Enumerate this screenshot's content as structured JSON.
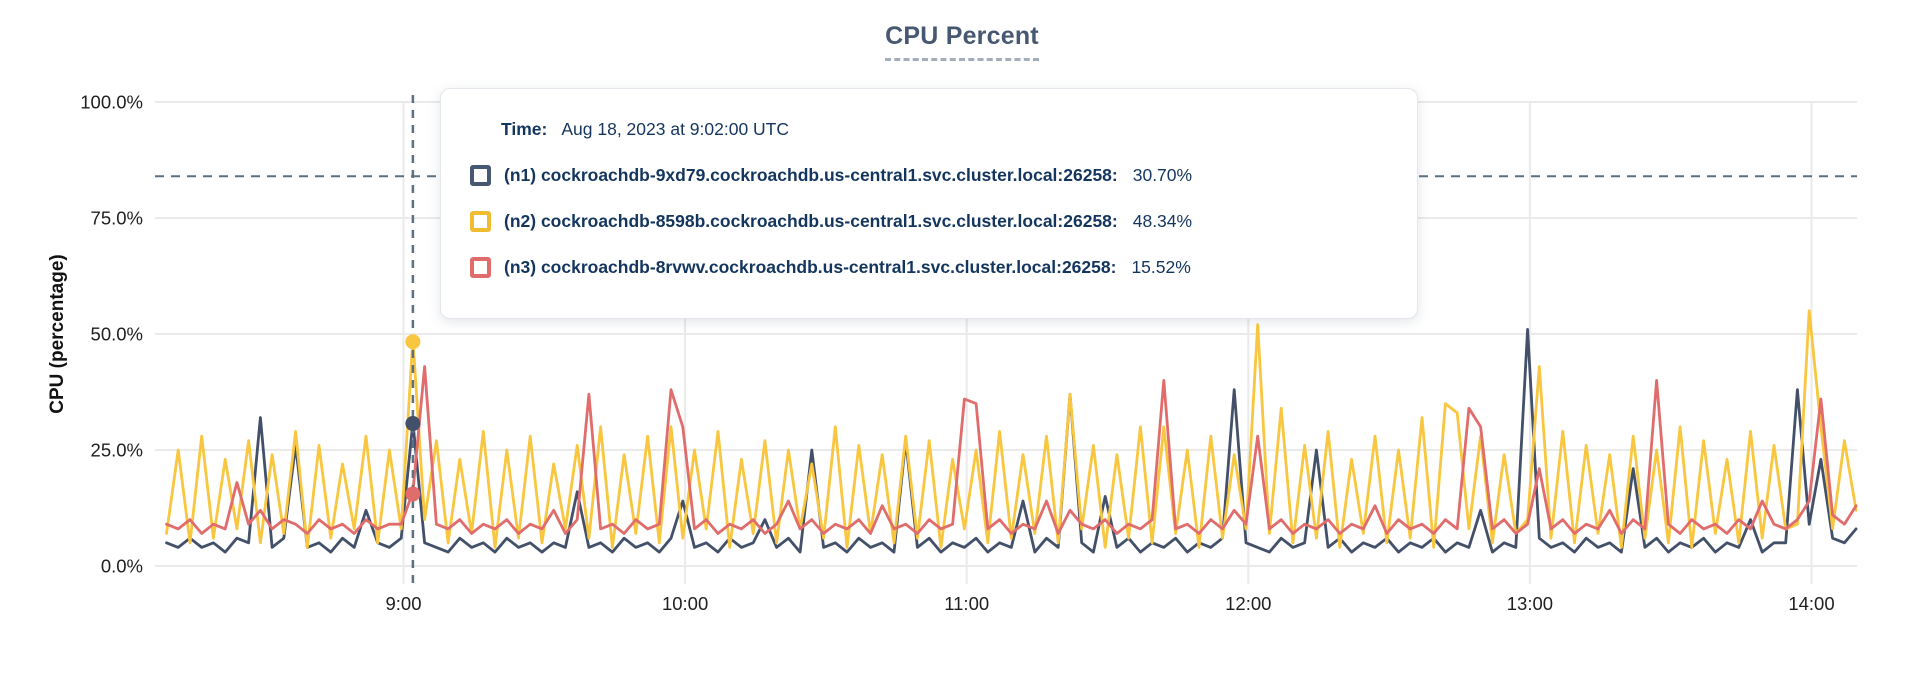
{
  "title": "CPU Percent",
  "y_axis_label": "CPU (percentage)",
  "tooltip": {
    "time_label": "Time:",
    "time_value": "Aug 18, 2023 at 9:02:00 UTC",
    "rows": [
      {
        "id": "n1",
        "label": "(n1) cockroachdb-9xd79.cockroachdb.us-central1.svc.cluster.local:26258:",
        "value": "30.70%",
        "color": "#475872"
      },
      {
        "id": "n2",
        "label": "(n2) cockroachdb-8598b.cockroachdb.us-central1.svc.cluster.local:26258:",
        "value": "48.34%",
        "color": "#f0bd32"
      },
      {
        "id": "n3",
        "label": "(n3) cockroachdb-8rvwv.cockroachdb.us-central1.svc.cluster.local:26258:",
        "value": "15.52%",
        "color": "#e06c6c"
      }
    ]
  },
  "hover": {
    "minute": 542,
    "values": [
      30.7,
      48.34,
      15.52
    ]
  },
  "colors": {
    "grid": "#eaeaea",
    "axis_text": "#1f1f1f",
    "dashed_guides": "#5c7082",
    "tooltip_text": "#14355e",
    "title": "#475872"
  },
  "chart_data": {
    "type": "line",
    "title": "CPU Percent",
    "xlabel": "",
    "ylabel": "CPU (percentage)",
    "ylim": [
      0,
      100
    ],
    "grid": true,
    "threshold_pct": 84,
    "x_start_min": 489.5,
    "x_step_min": 2.5,
    "x_ticks": [
      {
        "minute": 540,
        "label": "9:00"
      },
      {
        "minute": 600,
        "label": "10:00"
      },
      {
        "minute": 660,
        "label": "11:00"
      },
      {
        "minute": 720,
        "label": "12:00"
      },
      {
        "minute": 780,
        "label": "13:00"
      },
      {
        "minute": 840,
        "label": "14:00"
      }
    ],
    "y_ticks": [
      {
        "value": 0,
        "label": "0.0%"
      },
      {
        "value": 25,
        "label": "25.0%"
      },
      {
        "value": 50,
        "label": "50.0%"
      },
      {
        "value": 75,
        "label": "75.0%"
      },
      {
        "value": 100,
        "label": "100.0%"
      }
    ],
    "series": [
      {
        "id": "n1",
        "name": "(n1) cockroachdb-9xd79.cockroachdb.us-central1.svc.cluster.local:26258",
        "color": "#43506a",
        "hover_value": 30.7,
        "values": [
          5,
          4,
          6,
          4,
          5,
          3,
          6,
          5,
          32,
          4,
          6,
          26,
          4,
          5,
          3,
          6,
          4,
          12,
          5,
          4,
          6,
          31,
          5,
          4,
          3,
          6,
          4,
          5,
          3,
          6,
          4,
          5,
          3,
          5,
          4,
          16,
          4,
          5,
          3,
          6,
          4,
          5,
          3,
          6,
          14,
          4,
          5,
          3,
          6,
          4,
          5,
          10,
          4,
          6,
          3,
          25,
          4,
          5,
          3,
          6,
          4,
          5,
          3,
          27,
          4,
          6,
          3,
          5,
          4,
          6,
          3,
          5,
          4,
          14,
          3,
          6,
          4,
          37,
          5,
          3,
          15,
          4,
          6,
          3,
          5,
          4,
          6,
          3,
          5,
          4,
          6,
          38,
          5,
          4,
          3,
          6,
          4,
          5,
          25,
          4,
          6,
          3,
          5,
          4,
          6,
          3,
          5,
          4,
          6,
          3,
          5,
          4,
          12,
          3,
          5,
          4,
          51,
          6,
          4,
          5,
          3,
          6,
          4,
          5,
          3,
          21,
          4,
          6,
          3,
          5,
          4,
          6,
          3,
          5,
          4,
          10,
          3,
          5,
          5,
          38,
          9,
          23,
          6,
          5,
          8
        ]
      },
      {
        "id": "n2",
        "name": "(n2) cockroachdb-8598b.cockroachdb.us-central1.svc.cluster.local:26258",
        "color": "#f8c63f",
        "hover_value": 48.34,
        "values": [
          7,
          25,
          5,
          28,
          6,
          23,
          8,
          27,
          5,
          24,
          7,
          29,
          4,
          26,
          6,
          22,
          8,
          28,
          5,
          25,
          8,
          49,
          10,
          27,
          5,
          23,
          7,
          29,
          4,
          25,
          6,
          28,
          5,
          22,
          8,
          26,
          6,
          30,
          4,
          24,
          7,
          28,
          5,
          30,
          6,
          25,
          8,
          29,
          4,
          23,
          7,
          27,
          5,
          25,
          8,
          22,
          6,
          30,
          4,
          26,
          7,
          24,
          5,
          28,
          6,
          27,
          4,
          23,
          8,
          25,
          5,
          29,
          6,
          24,
          7,
          28,
          5,
          37,
          8,
          26,
          4,
          24,
          6,
          30,
          5,
          30,
          7,
          25,
          4,
          28,
          6,
          24,
          8,
          52,
          7,
          34,
          5,
          26,
          6,
          29,
          4,
          23,
          7,
          28,
          5,
          25,
          6,
          32,
          4,
          35,
          33,
          8,
          28,
          5,
          24,
          7,
          10,
          43,
          6,
          29,
          5,
          26,
          7,
          24,
          4,
          28,
          6,
          25,
          5,
          30,
          4,
          27,
          7,
          23,
          5,
          29,
          6,
          26,
          8,
          9,
          55,
          30,
          8,
          27,
          12
        ]
      },
      {
        "id": "n3",
        "name": "(n3) cockroachdb-8rvwv.cockroachdb.us-central1.svc.cluster.local:26258",
        "color": "#e06c6c",
        "hover_value": 15.52,
        "values": [
          9,
          8,
          10,
          7,
          9,
          8,
          18,
          9,
          12,
          8,
          10,
          9,
          7,
          10,
          8,
          9,
          7,
          10,
          8,
          9,
          9,
          16,
          43,
          9,
          8,
          10,
          7,
          9,
          8,
          10,
          7,
          9,
          8,
          12,
          7,
          10,
          37,
          8,
          9,
          7,
          10,
          8,
          9,
          38,
          30,
          8,
          10,
          7,
          9,
          8,
          10,
          7,
          9,
          14,
          8,
          10,
          7,
          9,
          8,
          10,
          7,
          13,
          8,
          9,
          7,
          10,
          8,
          9,
          36,
          35,
          8,
          10,
          7,
          9,
          8,
          14,
          7,
          12,
          9,
          8,
          10,
          7,
          9,
          8,
          10,
          40,
          8,
          9,
          7,
          10,
          8,
          12,
          9,
          28,
          8,
          10,
          7,
          9,
          8,
          10,
          7,
          9,
          8,
          13,
          7,
          10,
          8,
          9,
          7,
          10,
          8,
          34,
          30,
          8,
          10,
          7,
          9,
          21,
          8,
          10,
          7,
          9,
          8,
          12,
          7,
          10,
          8,
          40,
          9,
          7,
          10,
          8,
          9,
          7,
          10,
          8,
          14,
          9,
          8,
          10,
          14,
          36,
          11,
          9,
          13
        ]
      }
    ]
  }
}
